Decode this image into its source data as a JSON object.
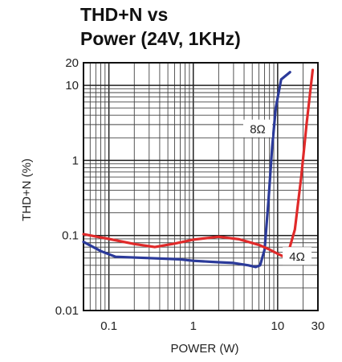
{
  "chart_data": {
    "type": "line",
    "title_lines": [
      "THD+N vs",
      "Power (24V, 1KHz)"
    ],
    "xlabel": "POWER (W)",
    "ylabel": "THD+N (%)",
    "x_scale": "log",
    "y_scale": "log",
    "xlim": [
      0.05,
      30
    ],
    "ylim": [
      0.01,
      20
    ],
    "grid": true,
    "x_tick_labels": [
      {
        "value": 0.1,
        "label": "0.1"
      },
      {
        "value": 1,
        "label": "1"
      },
      {
        "value": 10,
        "label": "10"
      },
      {
        "value": 30,
        "label": "30"
      }
    ],
    "y_tick_labels": [
      {
        "value": 0.01,
        "label": "0.01"
      },
      {
        "value": 0.1,
        "label": "0.1"
      },
      {
        "value": 1,
        "label": "1"
      },
      {
        "value": 10,
        "label": "10"
      },
      {
        "value": 20,
        "label": "20"
      }
    ],
    "series": [
      {
        "name": "8Ω",
        "color": "#2b3a9a",
        "x": [
          0.05,
          0.08,
          0.12,
          0.3,
          0.7,
          1.0,
          2.0,
          3.0,
          4.5,
          5.5,
          6.2,
          7.0,
          7.8,
          8.6,
          9.5,
          11.0,
          14.0
        ],
        "y": [
          0.082,
          0.062,
          0.052,
          0.05,
          0.048,
          0.046,
          0.044,
          0.043,
          0.04,
          0.038,
          0.04,
          0.065,
          0.3,
          1.5,
          5.0,
          12.0,
          15.0
        ]
      },
      {
        "name": "4Ω",
        "color": "#e02a2a",
        "x": [
          0.05,
          0.1,
          0.2,
          0.35,
          0.6,
          1.0,
          2.0,
          3.5,
          6.0,
          8.0,
          10.0,
          11.5,
          13.5,
          16.0,
          19.0,
          22.0,
          26.0
        ],
        "y": [
          0.104,
          0.09,
          0.077,
          0.07,
          0.078,
          0.088,
          0.096,
          0.089,
          0.075,
          0.065,
          0.057,
          0.053,
          0.062,
          0.12,
          0.6,
          3.0,
          16.0
        ]
      }
    ]
  }
}
